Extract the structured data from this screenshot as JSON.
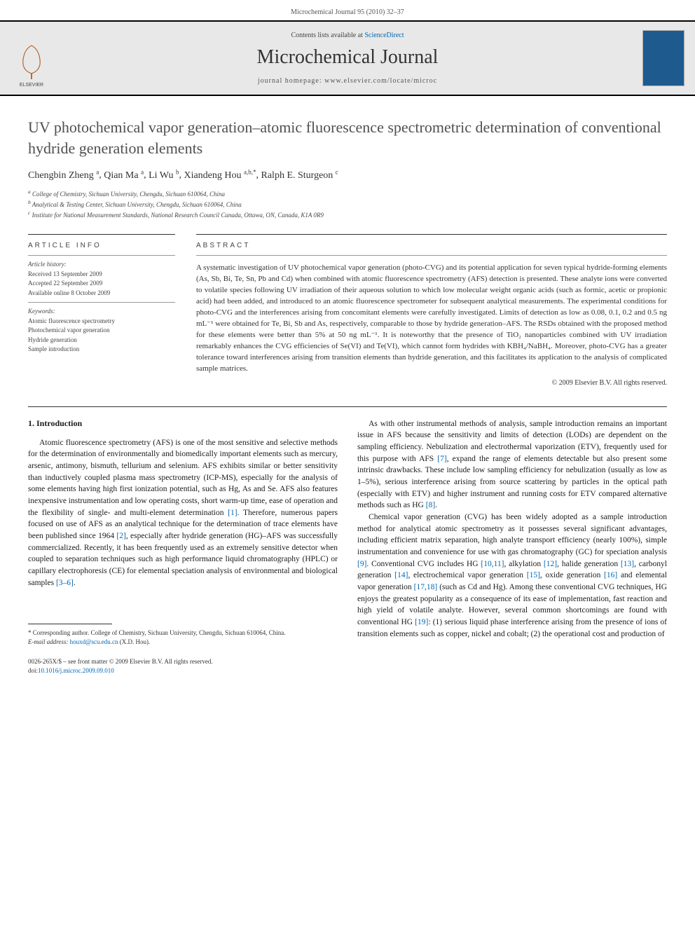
{
  "header": {
    "running_head": "Microchemical Journal 95 (2010) 32–37"
  },
  "banner": {
    "contents_text": "Contents lists available at ",
    "sd_label": "ScienceDirect",
    "journal_name": "Microchemical Journal",
    "homepage_prefix": "journal homepage: ",
    "homepage_url": "www.elsevier.com/locate/microc",
    "publisher": "ELSEVIER"
  },
  "title": "UV photochemical vapor generation–atomic fluorescence spectrometric determination of conventional hydride generation elements",
  "authors": [
    {
      "name": "Chengbin Zheng",
      "aff": "a"
    },
    {
      "name": "Qian Ma",
      "aff": "a"
    },
    {
      "name": "Li Wu",
      "aff": "b"
    },
    {
      "name": "Xiandeng Hou",
      "aff": "a,b,*"
    },
    {
      "name": "Ralph E. Sturgeon",
      "aff": "c"
    }
  ],
  "affiliations": [
    {
      "marker": "a",
      "text": "College of Chemistry, Sichuan University, Chengdu, Sichuan 610064, China"
    },
    {
      "marker": "b",
      "text": "Analytical & Testing Center, Sichuan University, Chengdu, Sichuan 610064, China"
    },
    {
      "marker": "c",
      "text": "Institute for National Measurement Standards, National Research Council Canada, Ottawa, ON, Canada, K1A 0R9"
    }
  ],
  "article_info": {
    "heading": "ARTICLE INFO",
    "history_label": "Article history:",
    "received": "Received 13 September 2009",
    "accepted": "Accepted 22 September 2009",
    "online": "Available online 8 October 2009",
    "keywords_label": "Keywords:",
    "keywords": [
      "Atomic fluorescence spectrometry",
      "Photochemical vapor generation",
      "Hydride generation",
      "Sample introduction"
    ]
  },
  "abstract": {
    "heading": "ABSTRACT",
    "text": "A systematic investigation of UV photochemical vapor generation (photo-CVG) and its potential application for seven typical hydride-forming elements (As, Sb, Bi, Te, Sn, Pb and Cd) when combined with atomic fluorescence spectrometry (AFS) detection is presented. These analyte ions were converted to volatile species following UV irradiation of their aqueous solution to which low molecular weight organic acids (such as formic, acetic or propionic acid) had been added, and introduced to an atomic fluorescence spectrometer for subsequent analytical measurements. The experimental conditions for photo-CVG and the interferences arising from concomitant elements were carefully investigated. Limits of detection as low as 0.08, 0.1, 0.2 and 0.5 ng mL⁻¹ were obtained for Te, Bi, Sb and As, respectively, comparable to those by hydride generation–AFS. The RSDs obtained with the proposed method for these elements were better than 5% at 50 ng mL⁻¹. It is noteworthy that the presence of TiO₂ nanoparticles combined with UV irradiation remarkably enhances the CVG efficiencies of Se(VI) and Te(VI), which cannot form hydrides with KBH₄/NaBH₄. Moreover, photo-CVG has a greater tolerance toward interferences arising from transition elements than hydride generation, and this facilitates its application to the analysis of complicated sample matrices.",
    "copyright": "© 2009 Elsevier B.V. All rights reserved."
  },
  "body": {
    "intro_heading": "1. Introduction",
    "col1_p1": "Atomic fluorescence spectrometry (AFS) is one of the most sensitive and selective methods for the determination of environmentally and biomedically important elements such as mercury, arsenic, antimony, bismuth, tellurium and selenium. AFS exhibits similar or better sensitivity than inductively coupled plasma mass spectrometry (ICP-MS), especially for the analysis of some elements having high first ionization potential, such as Hg, As and Se. AFS also features inexpensive instrumentation and low operating costs, short warm-up time, ease of operation and the flexibility of single- and multi-element determination [1]. Therefore, numerous papers focused on use of AFS as an analytical technique for the determination of trace elements have been published since 1964 [2], especially after hydride generation (HG)–AFS was successfully commercialized. Recently, it has been frequently used as an extremely sensitive detector when coupled to separation techniques such as high performance liquid chromatography (HPLC) or capillary electrophoresis (CE) for elemental speciation analysis of environmental and biological samples [3–6].",
    "col2_p1": "As with other instrumental methods of analysis, sample introduction remains an important issue in AFS because the sensitivity and limits of detection (LODs) are dependent on the sampling efficiency. Nebulization and electrothermal vaporization (ETV), frequently used for this purpose with AFS [7], expand the range of elements detectable but also present some intrinsic drawbacks. These include low sampling efficiency for nebulization (usually as low as 1–5%), serious interference arising from source scattering by particles in the optical path (especially with ETV) and higher instrument and running costs for ETV compared alternative methods such as HG [8].",
    "col2_p2": "Chemical vapor generation (CVG) has been widely adopted as a sample introduction method for analytical atomic spectrometry as it possesses several significant advantages, including efficient matrix separation, high analyte transport efficiency (nearly 100%), simple instrumentation and convenience for use with gas chromatography (GC) for speciation analysis [9]. Conventional CVG includes HG [10,11], alkylation [12], halide generation [13], carbonyl generation [14], electrochemical vapor generation [15], oxide generation [16] and elemental vapor generation [17,18] (such as Cd and Hg). Among these conventional CVG techniques, HG enjoys the greatest popularity as a consequence of its ease of implementation, fast reaction and high yield of volatile analyte. However, several common shortcomings are found with conventional HG [19]: (1) serious liquid phase interference arising from the presence of ions of transition elements such as copper, nickel and cobalt; (2) the operational cost and production of"
  },
  "footnote": {
    "corr_label": "* Corresponding author. College of Chemistry, Sichuan University, Chengdu, Sichuan 610064, China.",
    "email_label": "E-mail address:",
    "email": "houxd@scu.edu.cn",
    "email_who": "(X.D. Hou)."
  },
  "footer": {
    "issn": "0026-265X/$ – see front matter © 2009 Elsevier B.V. All rights reserved.",
    "doi_prefix": "doi:",
    "doi": "10.1016/j.microc.2009.09.010"
  },
  "colors": {
    "link": "#0066b3",
    "text": "#1a1a1a",
    "muted": "#555555",
    "banner_bg": "#e8e8e8",
    "cover": "#1e5a8e"
  }
}
